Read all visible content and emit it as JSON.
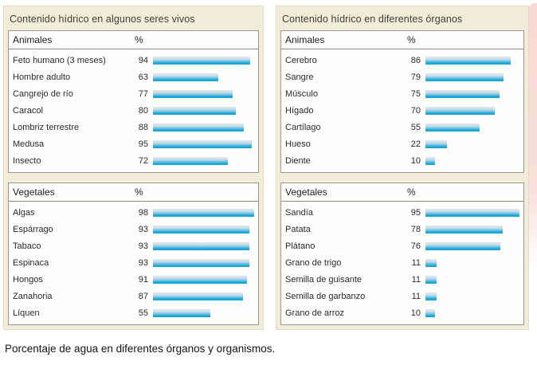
{
  "caption": "Porcentaje de agua en diferentes órganos y organismos.",
  "colors": {
    "panel_bg": "#f2edd9",
    "bar_gradient_top": "#dce3e9",
    "bar_gradient_bottom": "#14a2d4",
    "page_edge_pink": "#f7d9d5"
  },
  "panels": [
    {
      "title": "Contenido hídrico en algunos seres vivos"
    },
    {
      "title": "Contenido hídrico en diferentes órganos"
    }
  ],
  "chart_data": [
    {
      "type": "bar",
      "orientation": "horizontal",
      "title": "Contenido hídrico en algunos seres vivos — Animales",
      "section": "Animales",
      "unit": "%",
      "xlim": [
        0,
        100
      ],
      "categories": [
        "Feto humano (3 meses)",
        "Hombre adulto",
        "Cangrejo de río",
        "Caracol",
        "Lombriz terrestre",
        "Medusa",
        "Insecto"
      ],
      "values": [
        94,
        63,
        77,
        80,
        88,
        95,
        72
      ]
    },
    {
      "type": "bar",
      "orientation": "horizontal",
      "title": "Contenido hídrico en algunos seres vivos — Vegetales",
      "section": "Vegetales",
      "unit": "%",
      "xlim": [
        0,
        100
      ],
      "categories": [
        "Algas",
        "Espárrago",
        "Tabaco",
        "Espinaca",
        "Hongos",
        "Zanahoria",
        "Líquen"
      ],
      "values": [
        98,
        93,
        93,
        93,
        91,
        87,
        55
      ]
    },
    {
      "type": "bar",
      "orientation": "horizontal",
      "title": "Contenido hídrico en diferentes órganos — Animales",
      "section": "Animales",
      "unit": "%",
      "xlim": [
        0,
        100
      ],
      "categories": [
        "Cerebro",
        "Sangre",
        "Músculo",
        "Hígado",
        "Cartílago",
        "Hueso",
        "Diente"
      ],
      "values": [
        86,
        79,
        75,
        70,
        55,
        22,
        10
      ]
    },
    {
      "type": "bar",
      "orientation": "horizontal",
      "title": "Contenido hídrico en diferentes órganos — Vegetales",
      "section": "Vegetales",
      "unit": "%",
      "xlim": [
        0,
        100
      ],
      "categories": [
        "Sandía",
        "Patata",
        "Plátano",
        "Grano de trigo",
        "Semilla de guisante",
        "Semilla de garbanzo",
        "Grano de arroz"
      ],
      "values": [
        95,
        78,
        76,
        11,
        11,
        11,
        10
      ]
    }
  ]
}
